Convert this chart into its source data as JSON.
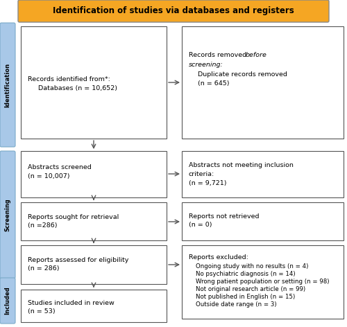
{
  "title": "Identification of studies via databases and registers",
  "title_bg": "#F5A623",
  "title_color": "#000000",
  "title_fontsize": 8.5,
  "sidebar_color": "#A8C8E8",
  "sidebar_labels": [
    "Identification",
    "Screening",
    "Included"
  ],
  "fontsize": 6.8,
  "fig_w": 5.0,
  "fig_h": 4.72,
  "dpi": 100
}
